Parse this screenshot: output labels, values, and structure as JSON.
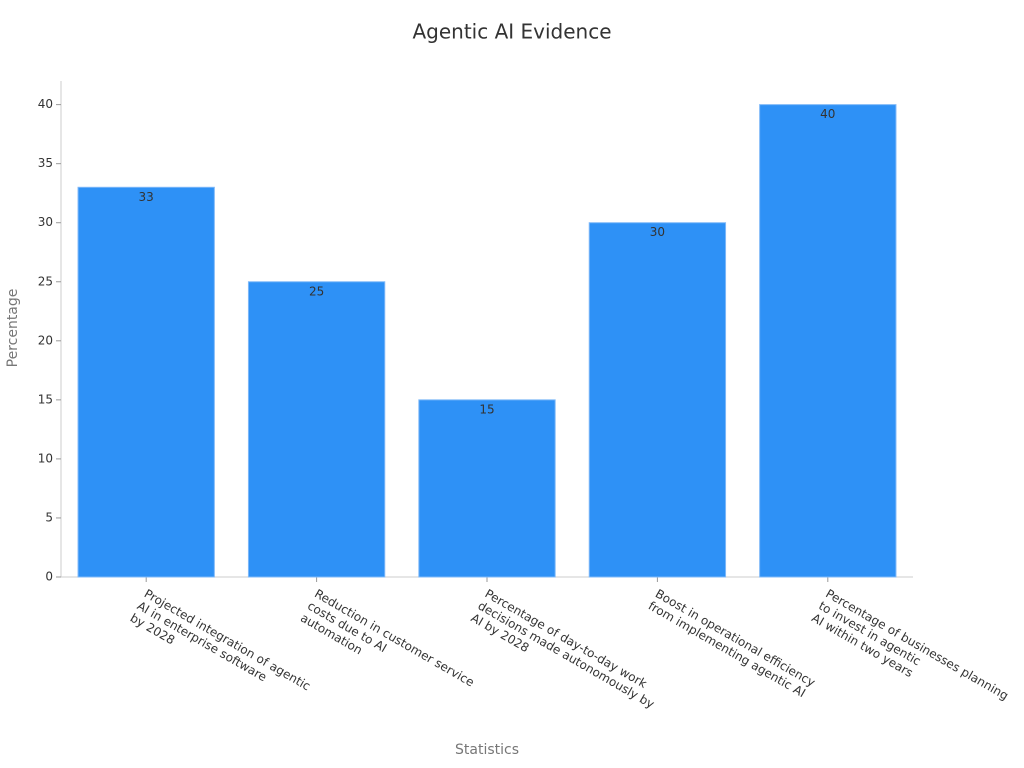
{
  "chart_data": {
    "type": "bar",
    "title": "Agentic AI Evidence",
    "x_label": "Statistics",
    "y_label": "Percentage",
    "categories": [
      "Projected integration of agentic\nAI in enterprise software\nby 2028",
      "Reduction in customer service\ncosts due to AI\nautomation",
      "Percentage of day-to-day work\ndecisions made autonomously by\nAI by 2028",
      "Boost in operational efficiency\nfrom implementing agentic AI",
      "Percentage of businesses planning\nto invest in agentic\nAI within two years"
    ],
    "values": [
      33,
      25,
      15,
      30,
      40
    ],
    "color": "#2e91f6",
    "ylim": [
      0,
      42
    ],
    "yticks": [
      0,
      5,
      10,
      15,
      20,
      25,
      30,
      35,
      40
    ],
    "grid": false
  }
}
